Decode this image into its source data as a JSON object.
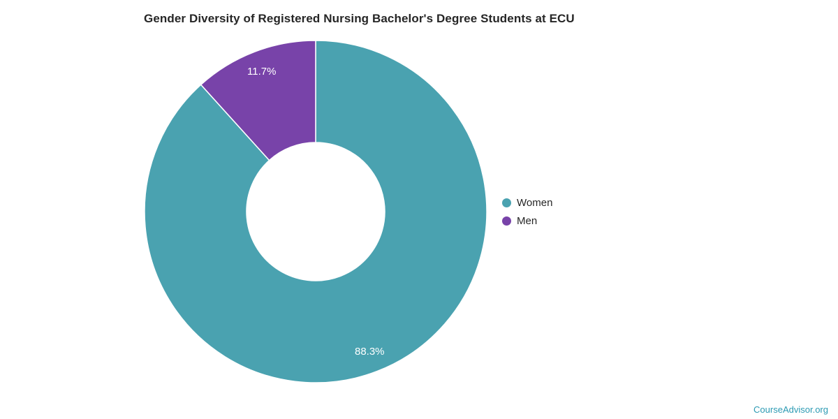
{
  "chart_data": {
    "type": "pie",
    "donut": true,
    "title": "Gender Diversity of Registered Nursing Bachelor's Degree Students at ECU",
    "categories": [
      "Women",
      "Men"
    ],
    "values": [
      88.3,
      11.7
    ],
    "value_labels": [
      "88.3%",
      "11.7%"
    ],
    "colors": [
      "#4aa2b0",
      "#7843a9"
    ],
    "label_color": "#ffffff",
    "legend_position": "right",
    "start_angle_deg": 0,
    "direction": "clockwise"
  },
  "footer": {
    "source": "CourseAdvisor.org"
  }
}
